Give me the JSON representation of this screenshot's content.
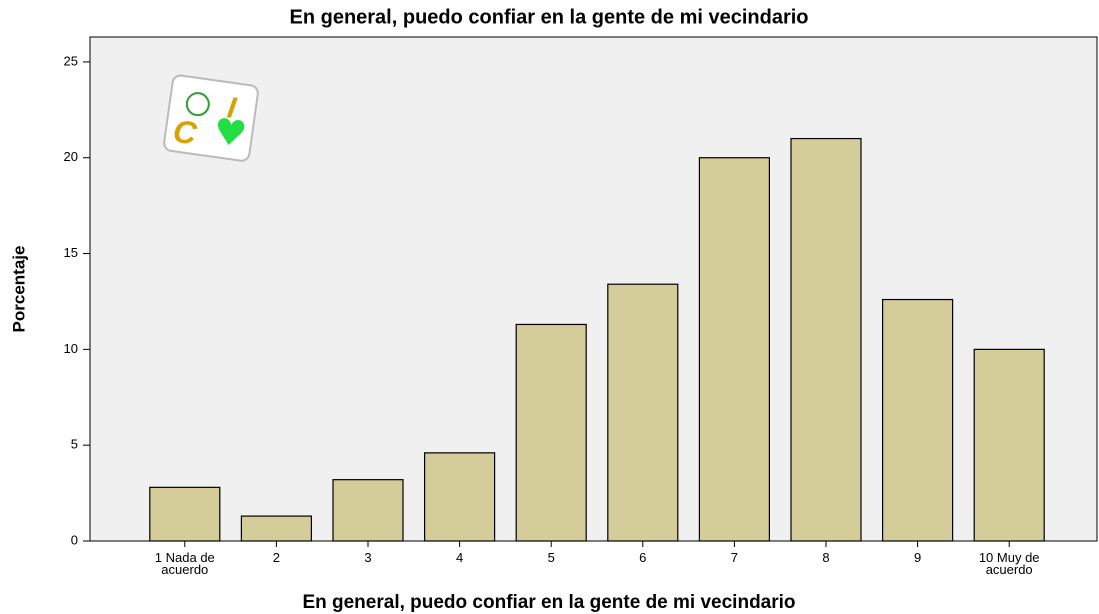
{
  "chart_data": {
    "type": "bar",
    "title": "En general, puedo confiar en la gente de mi vecindario",
    "x_label": "En general, puedo confiar en la gente de mi vecindario",
    "y_label": "Porcentaje",
    "categories": [
      "1 Nada de acuerdo",
      "2",
      "3",
      "4",
      "5",
      "6",
      "7",
      "8",
      "9",
      "10 Muy de acuerdo"
    ],
    "values": [
      2.8,
      1.3,
      3.2,
      4.6,
      11.3,
      13.4,
      20.0,
      21.0,
      12.6,
      10.0
    ],
    "color": "#d4cc99",
    "ylim": [
      0,
      26.3
    ],
    "yticks": [
      0,
      5,
      10,
      15,
      20,
      25
    ],
    "grid": false
  }
}
